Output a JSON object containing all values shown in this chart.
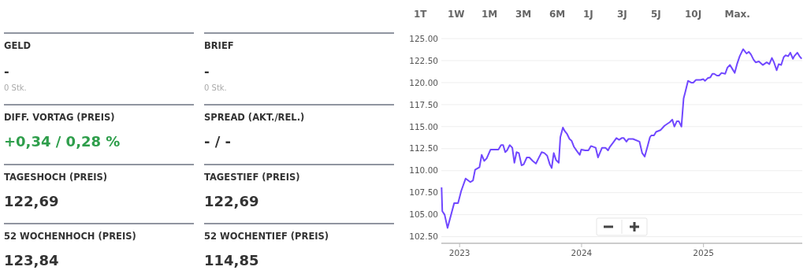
{
  "chart_data": [
    {
      "type": "other",
      "annotations": [
        "GELD",
        "-",
        "0 Stk.",
        "BRIEF",
        "-",
        "0 Stk.",
        "DIFF. VORTAG (PREIS)",
        "+0,34 / 0,28 %",
        "SPREAD (AKT./REL.)",
        "- / -",
        "TAGESHOCH (PREIS)",
        "122,69",
        "TAGESTIEF (PREIS)",
        "122,69",
        "52 WOCHENHOCH (PREIS)",
        "123,84",
        "52 WOCHENTIEF (PREIS)",
        "114,85"
      ]
    },
    {
      "type": "line",
      "annotations": [
        "1T",
        "1W",
        "1M",
        "3M",
        "6M",
        "1J",
        "3J",
        "5J",
        "10J",
        "Max."
      ],
      "x": [
        2022.852,
        2022.858,
        2022.877,
        2022.901,
        2022.955,
        2022.987,
        2023.013,
        2023.049,
        2023.088,
        2023.11,
        2023.127,
        2023.163,
        2023.181,
        2023.202,
        2023.222,
        2023.254,
        2023.292,
        2023.318,
        2023.34,
        2023.357,
        2023.374,
        2023.389,
        2023.411,
        2023.432,
        2023.449,
        2023.467,
        2023.486,
        2023.508,
        2023.525,
        2023.551,
        2023.572,
        2023.6,
        2023.626,
        2023.647,
        2023.673,
        2023.695,
        2023.718,
        2023.74,
        2023.755,
        2023.772,
        2023.791,
        2023.813,
        2023.826,
        2023.847,
        2023.862,
        2023.88,
        2023.901,
        2023.918,
        2023.938,
        2023.963,
        2023.985,
        2023.998,
        2024.03,
        2024.056,
        2024.077,
        2024.116,
        2024.135,
        2024.168,
        2024.196,
        2024.217,
        2024.232,
        2024.26,
        2024.286,
        2024.308,
        2024.329,
        2024.346,
        2024.368,
        2024.385,
        2024.422,
        2024.475,
        2024.497,
        2024.518,
        2024.54,
        2024.561,
        2024.572,
        2024.594,
        2024.611,
        2024.647,
        2024.68,
        2024.701,
        2024.723,
        2024.744,
        2024.761,
        2024.781,
        2024.798,
        2024.819,
        2024.837,
        2024.852,
        2024.873,
        2024.899,
        2024.916,
        2024.938,
        2024.976,
        2024.998,
        2025.013,
        2025.034,
        2025.056,
        2025.073,
        2025.088,
        2025.11,
        2025.127,
        2025.148,
        2025.178,
        2025.196,
        2025.217,
        2025.239,
        2025.256,
        2025.275,
        2025.297,
        2025.325,
        2025.353,
        2025.372,
        2025.389,
        2025.411,
        2025.428,
        2025.454,
        2025.486,
        2025.518,
        2025.54,
        2025.561,
        2025.578,
        2025.6,
        2025.617,
        2025.637,
        2025.658,
        2025.673,
        2025.695,
        2025.712,
        2025.733,
        2025.744,
        2025.77,
        2025.787,
        2025.805
      ],
      "series": [
        {
          "color": "#7047ff",
          "values": [
            108.1,
            105.4,
            105.0,
            103.5,
            106.3,
            106.3,
            107.7,
            109.1,
            108.7,
            108.9,
            110.1,
            110.4,
            111.8,
            111.1,
            111.4,
            112.4,
            112.4,
            112.4,
            112.9,
            112.9,
            112.1,
            112.3,
            112.9,
            112.6,
            110.9,
            112.1,
            112.0,
            110.6,
            110.7,
            111.5,
            111.5,
            111.1,
            110.8,
            111.4,
            112.1,
            112.0,
            111.7,
            110.7,
            110.3,
            112.0,
            111.2,
            110.9,
            113.8,
            114.9,
            114.5,
            114.2,
            113.6,
            113.4,
            112.7,
            112.2,
            111.8,
            112.4,
            112.3,
            112.3,
            112.8,
            112.6,
            111.5,
            112.6,
            112.6,
            112.3,
            112.7,
            113.2,
            113.7,
            113.5,
            113.7,
            113.7,
            113.3,
            113.6,
            113.6,
            113.3,
            112.0,
            111.6,
            112.7,
            113.8,
            114.0,
            114.0,
            114.4,
            114.6,
            115.1,
            115.3,
            115.5,
            115.8,
            115.0,
            115.6,
            115.6,
            115.0,
            118.2,
            119.0,
            120.2,
            120.0,
            120.0,
            120.3,
            120.3,
            120.4,
            120.2,
            120.5,
            120.6,
            121.0,
            121.0,
            120.8,
            120.8,
            121.1,
            121.0,
            121.7,
            122.0,
            121.5,
            121.1,
            122.1,
            123.0,
            123.8,
            123.3,
            123.5,
            123.2,
            122.6,
            122.3,
            122.4,
            122.0,
            122.3,
            122.1,
            122.8,
            122.3,
            121.4,
            122.1,
            122.0,
            122.9,
            123.1,
            123.0,
            123.4,
            122.7,
            123.0,
            123.4,
            123.0,
            122.7
          ]
        }
      ],
      "xlim": [
        2022.85,
        2025.81
      ],
      "xticks": [
        2023,
        2024,
        2025
      ],
      "ylim": [
        101.75,
        125
      ],
      "yticks": [
        {
          "value": 102.5,
          "label": "102.50"
        },
        {
          "value": 105,
          "label": "105.00"
        },
        {
          "value": 107.5,
          "label": "107.50"
        },
        {
          "value": 110,
          "label": "110.00"
        },
        {
          "value": 112.5,
          "label": "112.50"
        },
        {
          "value": 115,
          "label": "115.00"
        },
        {
          "value": 117.5,
          "label": "117.50"
        },
        {
          "value": 120,
          "label": "120.00"
        },
        {
          "value": 122.5,
          "label": "122.50"
        },
        {
          "value": 125,
          "label": "125.00"
        }
      ],
      "grid": "y",
      "marker": "none",
      "line_style": "solid"
    }
  ]
}
